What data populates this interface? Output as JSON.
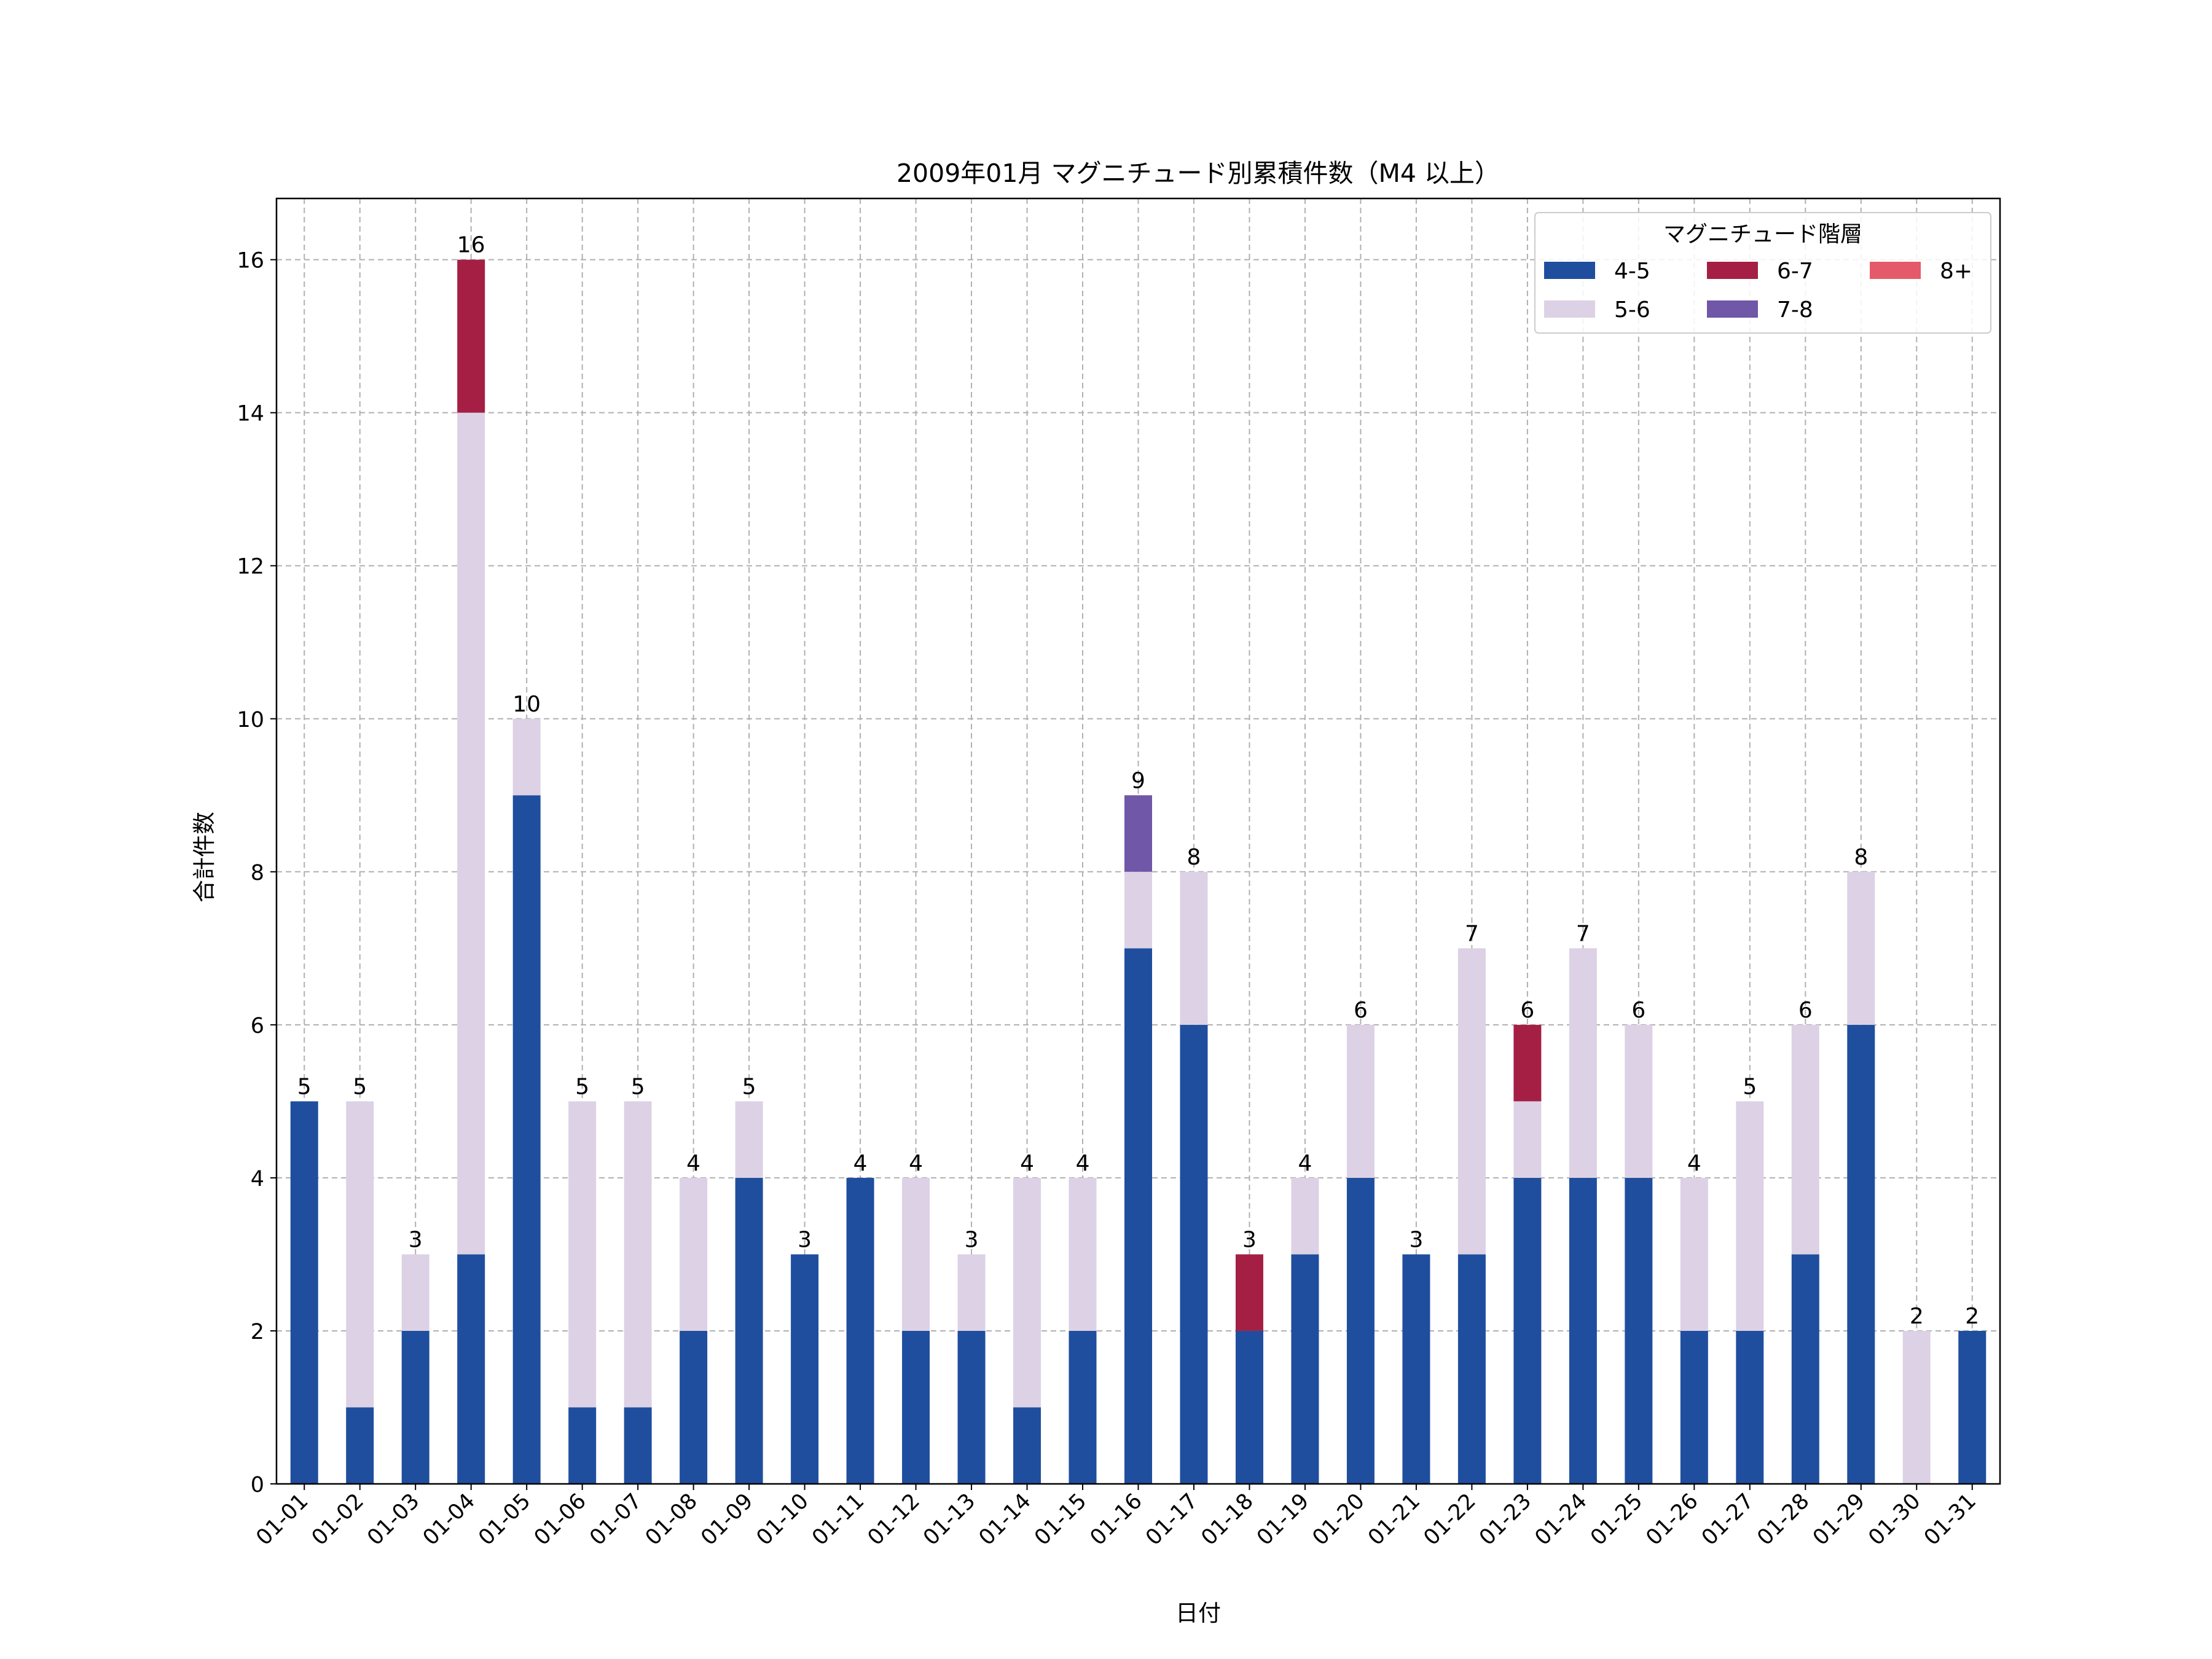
{
  "chart_data": {
    "type": "bar",
    "stacked": true,
    "title": "2009年01月 マグニチュード別累積件数（M4 以上）",
    "xlabel": "日付",
    "ylabel": "合計件数",
    "ylim": [
      0,
      16.8
    ],
    "yticks": [
      0,
      2,
      4,
      6,
      8,
      10,
      12,
      14,
      16
    ],
    "grid": true,
    "legend": {
      "title": "マグニチュード階層",
      "placement": "top-right"
    },
    "categories": [
      "01-01",
      "01-02",
      "01-03",
      "01-04",
      "01-05",
      "01-06",
      "01-07",
      "01-08",
      "01-09",
      "01-10",
      "01-11",
      "01-12",
      "01-13",
      "01-14",
      "01-15",
      "01-16",
      "01-17",
      "01-18",
      "01-19",
      "01-20",
      "01-21",
      "01-22",
      "01-23",
      "01-24",
      "01-25",
      "01-26",
      "01-27",
      "01-28",
      "01-29",
      "01-30",
      "01-31"
    ],
    "series": [
      {
        "name": "4-5",
        "color": "#1f4e9e",
        "values": [
          5,
          1,
          2,
          3,
          9,
          1,
          1,
          2,
          4,
          3,
          4,
          2,
          2,
          1,
          2,
          7,
          6,
          2,
          3,
          4,
          3,
          3,
          4,
          4,
          4,
          2,
          2,
          3,
          6,
          0,
          2
        ]
      },
      {
        "name": "5-6",
        "color": "#dcd1e5",
        "values": [
          0,
          4,
          1,
          11,
          1,
          4,
          4,
          2,
          1,
          0,
          0,
          2,
          1,
          3,
          2,
          1,
          2,
          0,
          1,
          2,
          0,
          4,
          1,
          3,
          2,
          2,
          3,
          3,
          2,
          2,
          0
        ]
      },
      {
        "name": "6-7",
        "color": "#a51f45",
        "values": [
          0,
          0,
          0,
          2,
          0,
          0,
          0,
          0,
          0,
          0,
          0,
          0,
          0,
          0,
          0,
          0,
          0,
          1,
          0,
          0,
          0,
          0,
          1,
          0,
          0,
          0,
          0,
          0,
          0,
          0,
          0
        ]
      },
      {
        "name": "7-8",
        "color": "#7057a8",
        "values": [
          0,
          0,
          0,
          0,
          0,
          0,
          0,
          0,
          0,
          0,
          0,
          0,
          0,
          0,
          0,
          1,
          0,
          0,
          0,
          0,
          0,
          0,
          0,
          0,
          0,
          0,
          0,
          0,
          0,
          0,
          0
        ]
      },
      {
        "name": "8+",
        "color": "#e55a6a",
        "values": [
          0,
          0,
          0,
          0,
          0,
          0,
          0,
          0,
          0,
          0,
          0,
          0,
          0,
          0,
          0,
          0,
          0,
          0,
          0,
          0,
          0,
          0,
          0,
          0,
          0,
          0,
          0,
          0,
          0,
          0,
          0
        ]
      }
    ],
    "totals": [
      5,
      5,
      3,
      16,
      10,
      5,
      5,
      4,
      5,
      3,
      4,
      4,
      3,
      4,
      4,
      9,
      8,
      3,
      4,
      6,
      3,
      7,
      6,
      7,
      6,
      4,
      5,
      6,
      8,
      2,
      2
    ]
  }
}
